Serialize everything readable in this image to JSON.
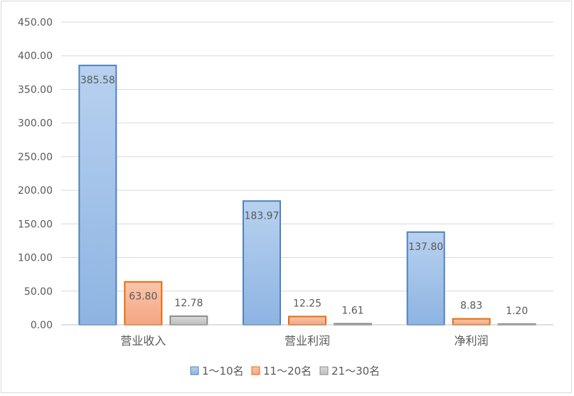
{
  "chart_data": {
    "type": "bar",
    "categories": [
      "营业收入",
      "营业利润",
      "净利润"
    ],
    "series": [
      {
        "name": "1～10名",
        "values": [
          385.58,
          183.97,
          137.8
        ],
        "labels": [
          "385.58",
          "183.97",
          "137.80"
        ],
        "color": "#8db4e2",
        "stroke": "#4f81bd",
        "highlight": "#b8d1ef"
      },
      {
        "name": "11～20名",
        "values": [
          63.8,
          12.25,
          8.83
        ],
        "labels": [
          "63.80",
          "12.25",
          "8.83"
        ],
        "color": "#f4a582",
        "stroke": "#e46c0a",
        "highlight": "#f9c6aa"
      },
      {
        "name": "21～30名",
        "values": [
          12.78,
          1.61,
          1.2
        ],
        "labels": [
          "12.78",
          "1.61",
          "1.20"
        ],
        "color": "#bfbfbf",
        "stroke": "#8c8c8c",
        "highlight": "#d9d9d9"
      }
    ],
    "ylim": [
      0,
      450
    ],
    "yticks": [
      "0.00",
      "50.00",
      "100.00",
      "150.00",
      "200.00",
      "250.00",
      "300.00",
      "350.00",
      "400.00",
      "450.00"
    ],
    "grid": true,
    "legend_position": "bottom"
  }
}
